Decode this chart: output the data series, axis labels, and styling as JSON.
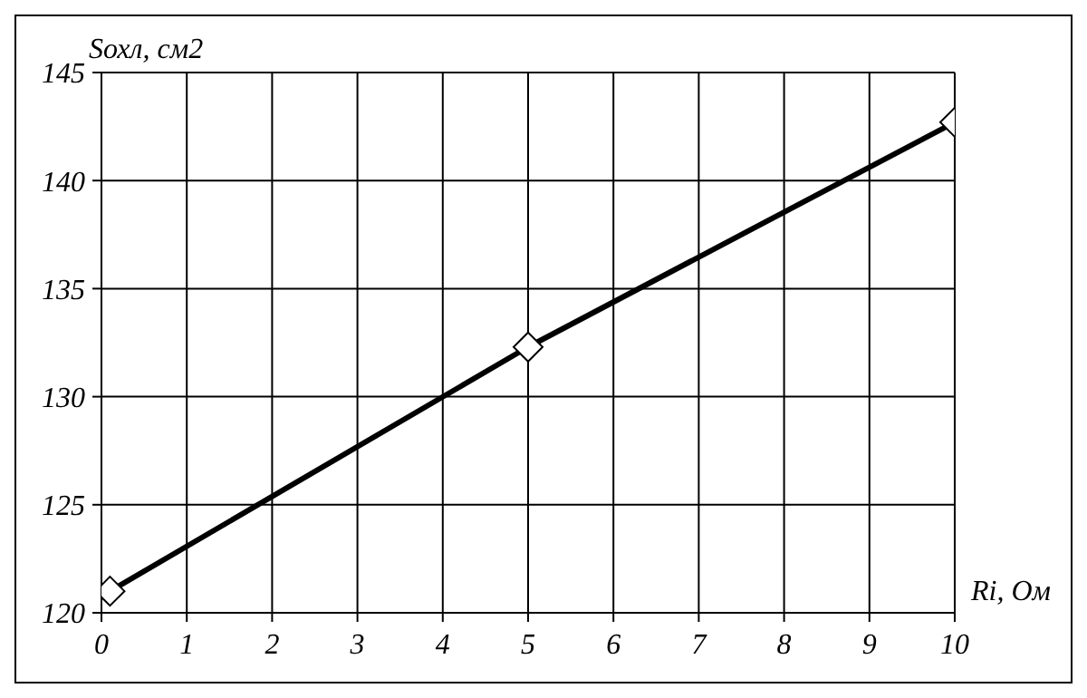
{
  "chart_data": {
    "type": "line",
    "xlabel": "Ri, Ом",
    "ylabel": "Sохл, см2",
    "x": [
      0.1,
      5,
      10
    ],
    "series": [
      {
        "color": "#000000",
        "values": [
          121,
          132.3,
          142.7
        ]
      }
    ],
    "xlim": [
      0,
      10
    ],
    "xticks": [
      0,
      1,
      2,
      3,
      4,
      5,
      6,
      7,
      8,
      9,
      10
    ],
    "ylim": [
      120,
      145
    ],
    "yticks": [
      120,
      125,
      130,
      135,
      140,
      145
    ],
    "grid": true,
    "legend": false,
    "marker": "diamond",
    "line_style": "solid"
  }
}
